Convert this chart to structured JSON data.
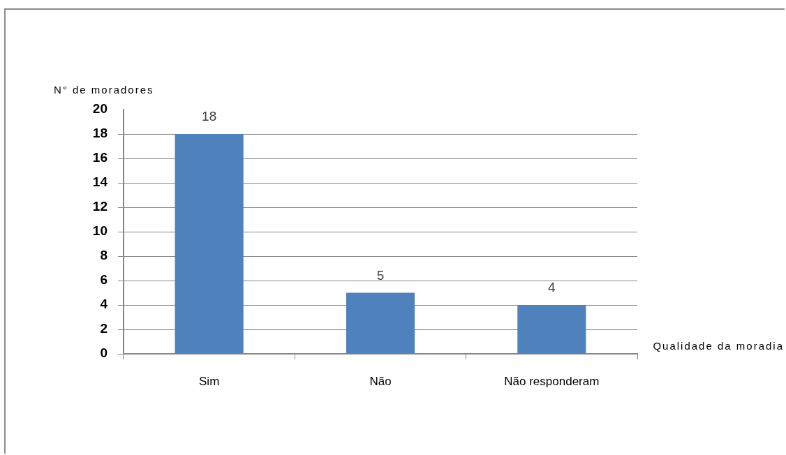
{
  "chart_data": {
    "type": "bar",
    "xlabel": "Qualidade da moradia",
    "ylabel": "N° de moradores",
    "categories": [
      "Sim",
      "Não",
      "Não responderam"
    ],
    "values": [
      18,
      5,
      4
    ],
    "color": "#4f81bd",
    "ylim": [
      0,
      20
    ],
    "yticks": [
      0,
      2,
      4,
      6,
      8,
      10,
      12,
      14,
      16,
      18,
      20
    ],
    "grid": "y",
    "data_labels": true
  }
}
